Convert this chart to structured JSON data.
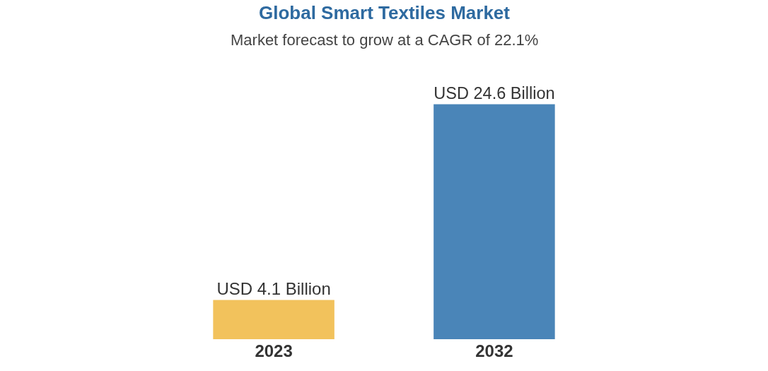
{
  "chart_data": {
    "type": "bar",
    "title": "Global Smart Textiles Market",
    "subtitle": "Market forecast to grow at a CAGR of 22.1%",
    "categories": [
      "2023",
      "2032"
    ],
    "values": [
      4.1,
      24.6
    ],
    "colors": [
      "#f2c25c",
      "#4a85b8"
    ],
    "value_labels": [
      "USD 4.1 Billion",
      "USD 24.6 Billion"
    ],
    "tick_labels": "x",
    "grid": false,
    "legend": false
  }
}
